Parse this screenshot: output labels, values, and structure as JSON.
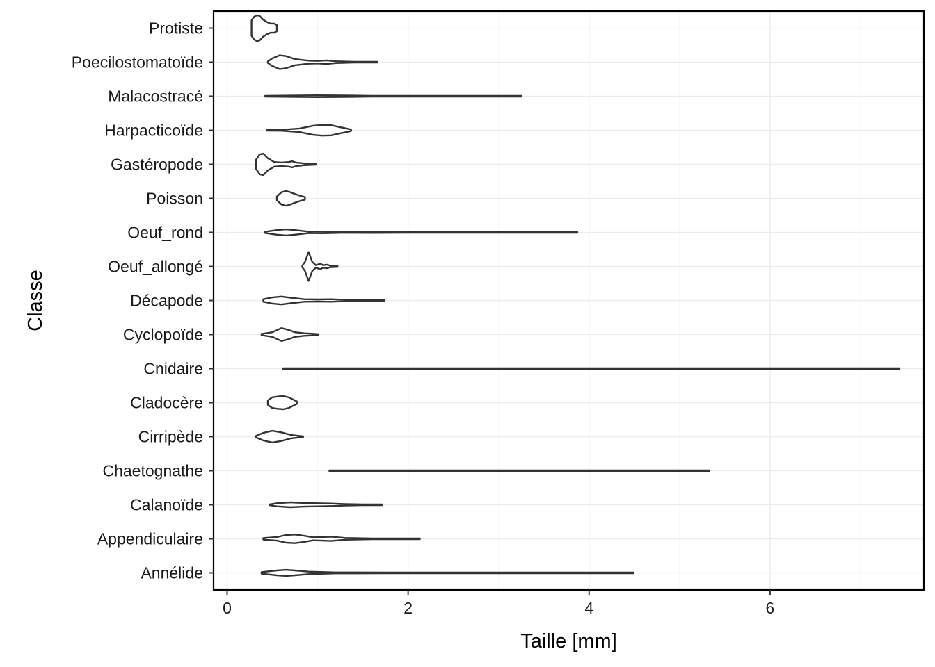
{
  "chart_data": {
    "type": "violin",
    "orientation": "horizontal",
    "xlabel": "Taille  [mm]",
    "ylabel": "Classe",
    "xlim": [
      -0.15,
      7.7
    ],
    "xticks": [
      0,
      2,
      4,
      6
    ],
    "xtick_labels": [
      "0",
      "2",
      "4",
      "6"
    ],
    "grid": true,
    "panel_border": true,
    "categories": [
      "Protiste",
      "Poecilostomatoïde",
      "Malacostracé",
      "Harpacticoïde",
      "Gastéropode",
      "Poisson",
      "Oeuf_rond",
      "Oeuf_allongé",
      "Décapode",
      "Cyclopoïde",
      "Cnidaire",
      "Cladocère",
      "Cirripède",
      "Chaetognathe",
      "Calanoïde",
      "Appendiculaire",
      "Annélide"
    ],
    "series": [
      {
        "category": "Protiste",
        "min": 0.27,
        "max": 0.55,
        "profile": [
          [
            0.27,
            0.5
          ],
          [
            0.3,
            0.75
          ],
          [
            0.33,
            0.85
          ],
          [
            0.36,
            0.8
          ],
          [
            0.4,
            0.55
          ],
          [
            0.44,
            0.4
          ],
          [
            0.48,
            0.3
          ],
          [
            0.52,
            0.3
          ],
          [
            0.55,
            0.2
          ]
        ]
      },
      {
        "category": "Poecilostomatoïde",
        "min": 0.45,
        "max": 1.66,
        "profile": [
          [
            0.45,
            0.05
          ],
          [
            0.5,
            0.25
          ],
          [
            0.58,
            0.45
          ],
          [
            0.65,
            0.4
          ],
          [
            0.75,
            0.2
          ],
          [
            0.9,
            0.1
          ],
          [
            1.0,
            0.08
          ],
          [
            1.1,
            0.12
          ],
          [
            1.2,
            0.06
          ],
          [
            1.4,
            0.02
          ],
          [
            1.66,
            0.01
          ]
        ]
      },
      {
        "category": "Malacostracé",
        "min": 0.42,
        "max": 3.25,
        "profile": [
          [
            0.42,
            0.01
          ],
          [
            0.7,
            0.04
          ],
          [
            1.0,
            0.06
          ],
          [
            1.3,
            0.05
          ],
          [
            1.6,
            0.025
          ],
          [
            2.0,
            0.012
          ],
          [
            2.5,
            0.006
          ],
          [
            3.0,
            0.003
          ],
          [
            3.25,
            0.001
          ]
        ]
      },
      {
        "category": "Harpacticoïde",
        "min": 0.44,
        "max": 1.37,
        "profile": [
          [
            0.44,
            0.01
          ],
          [
            0.6,
            0.03
          ],
          [
            0.8,
            0.12
          ],
          [
            0.95,
            0.3
          ],
          [
            1.05,
            0.35
          ],
          [
            1.15,
            0.33
          ],
          [
            1.25,
            0.2
          ],
          [
            1.32,
            0.12
          ],
          [
            1.37,
            0.05
          ]
        ]
      },
      {
        "category": "Gastéropode",
        "min": 0.32,
        "max": 0.98,
        "profile": [
          [
            0.32,
            0.3
          ],
          [
            0.36,
            0.65
          ],
          [
            0.4,
            0.7
          ],
          [
            0.45,
            0.4
          ],
          [
            0.52,
            0.15
          ],
          [
            0.6,
            0.12
          ],
          [
            0.68,
            0.15
          ],
          [
            0.72,
            0.2
          ],
          [
            0.76,
            0.12
          ],
          [
            0.85,
            0.06
          ],
          [
            0.98,
            0.02
          ]
        ]
      },
      {
        "category": "Poisson",
        "min": 0.55,
        "max": 0.86,
        "profile": [
          [
            0.55,
            0.12
          ],
          [
            0.6,
            0.4
          ],
          [
            0.65,
            0.48
          ],
          [
            0.7,
            0.4
          ],
          [
            0.75,
            0.28
          ],
          [
            0.8,
            0.18
          ],
          [
            0.86,
            0.08
          ]
        ]
      },
      {
        "category": "Oeuf_rond",
        "min": 0.42,
        "max": 3.87,
        "profile": [
          [
            0.42,
            0.04
          ],
          [
            0.55,
            0.15
          ],
          [
            0.65,
            0.2
          ],
          [
            0.75,
            0.15
          ],
          [
            0.9,
            0.05
          ],
          [
            1.05,
            0.06
          ],
          [
            1.3,
            0.025
          ],
          [
            1.6,
            0.035
          ],
          [
            2.0,
            0.012
          ],
          [
            2.5,
            0.016
          ],
          [
            2.8,
            0.014
          ],
          [
            3.2,
            0.006
          ],
          [
            3.87,
            0.002
          ]
        ]
      },
      {
        "category": "Oeuf_allongé",
        "min": 0.83,
        "max": 1.22,
        "profile": [
          [
            0.83,
            0.05
          ],
          [
            0.86,
            0.3
          ],
          [
            0.9,
            0.95
          ],
          [
            0.94,
            0.3
          ],
          [
            0.98,
            0.08
          ],
          [
            1.03,
            0.18
          ],
          [
            1.06,
            0.08
          ],
          [
            1.1,
            0.12
          ],
          [
            1.14,
            0.05
          ],
          [
            1.22,
            0.03
          ]
        ]
      },
      {
        "category": "Décapode",
        "min": 0.4,
        "max": 1.74,
        "profile": [
          [
            0.4,
            0.08
          ],
          [
            0.5,
            0.2
          ],
          [
            0.6,
            0.26
          ],
          [
            0.7,
            0.18
          ],
          [
            0.85,
            0.08
          ],
          [
            1.0,
            0.07
          ],
          [
            1.15,
            0.08
          ],
          [
            1.3,
            0.04
          ],
          [
            1.5,
            0.015
          ],
          [
            1.74,
            0.005
          ]
        ]
      },
      {
        "category": "Cyclopoïde",
        "min": 0.38,
        "max": 1.01,
        "profile": [
          [
            0.38,
            0.04
          ],
          [
            0.5,
            0.15
          ],
          [
            0.6,
            0.42
          ],
          [
            0.68,
            0.3
          ],
          [
            0.75,
            0.15
          ],
          [
            0.85,
            0.08
          ],
          [
            0.93,
            0.06
          ],
          [
            1.01,
            0.01
          ]
        ]
      },
      {
        "category": "Cnidaire",
        "min": 0.62,
        "max": 7.43,
        "profile": [
          [
            0.62,
            0.004
          ],
          [
            1.5,
            0.012
          ],
          [
            2.5,
            0.01
          ],
          [
            3.5,
            0.008
          ],
          [
            4.5,
            0.006
          ],
          [
            5.5,
            0.005
          ],
          [
            6.5,
            0.003
          ],
          [
            7.43,
            0.001
          ]
        ]
      },
      {
        "category": "Cladocère",
        "min": 0.45,
        "max": 0.77,
        "profile": [
          [
            0.45,
            0.15
          ],
          [
            0.5,
            0.35
          ],
          [
            0.56,
            0.4
          ],
          [
            0.62,
            0.43
          ],
          [
            0.68,
            0.35
          ],
          [
            0.73,
            0.2
          ],
          [
            0.77,
            0.08
          ]
        ]
      },
      {
        "category": "Cirripède",
        "min": 0.32,
        "max": 0.84,
        "profile": [
          [
            0.32,
            0.05
          ],
          [
            0.4,
            0.25
          ],
          [
            0.5,
            0.38
          ],
          [
            0.6,
            0.28
          ],
          [
            0.7,
            0.12
          ],
          [
            0.78,
            0.06
          ],
          [
            0.84,
            0.02
          ]
        ]
      },
      {
        "category": "Chaetognathe",
        "min": 1.13,
        "max": 5.33,
        "profile": [
          [
            1.13,
            0.005
          ],
          [
            2.0,
            0.015
          ],
          [
            2.8,
            0.02
          ],
          [
            3.6,
            0.018
          ],
          [
            4.4,
            0.01
          ],
          [
            5.0,
            0.006
          ],
          [
            5.33,
            0.002
          ]
        ]
      },
      {
        "category": "Calanoïde",
        "min": 0.47,
        "max": 1.71,
        "profile": [
          [
            0.47,
            0.02
          ],
          [
            0.55,
            0.1
          ],
          [
            0.7,
            0.16
          ],
          [
            0.85,
            0.12
          ],
          [
            1.0,
            0.1
          ],
          [
            1.15,
            0.08
          ],
          [
            1.3,
            0.05
          ],
          [
            1.5,
            0.02
          ],
          [
            1.71,
            0.005
          ]
        ]
      },
      {
        "category": "Appendiculaire",
        "min": 0.4,
        "max": 2.13,
        "profile": [
          [
            0.4,
            0.05
          ],
          [
            0.55,
            0.12
          ],
          [
            0.65,
            0.25
          ],
          [
            0.75,
            0.28
          ],
          [
            0.85,
            0.2
          ],
          [
            0.95,
            0.1
          ],
          [
            1.05,
            0.12
          ],
          [
            1.15,
            0.14
          ],
          [
            1.3,
            0.06
          ],
          [
            1.6,
            0.02
          ],
          [
            2.13,
            0.005
          ]
        ]
      },
      {
        "category": "Annélide",
        "min": 0.38,
        "max": 4.49,
        "profile": [
          [
            0.38,
            0.05
          ],
          [
            0.55,
            0.16
          ],
          [
            0.65,
            0.2
          ],
          [
            0.75,
            0.16
          ],
          [
            0.9,
            0.08
          ],
          [
            1.2,
            0.03
          ],
          [
            1.8,
            0.01
          ],
          [
            2.5,
            0.006
          ],
          [
            3.0,
            0.008
          ],
          [
            3.5,
            0.004
          ],
          [
            4.49,
            0.002
          ]
        ]
      }
    ]
  }
}
